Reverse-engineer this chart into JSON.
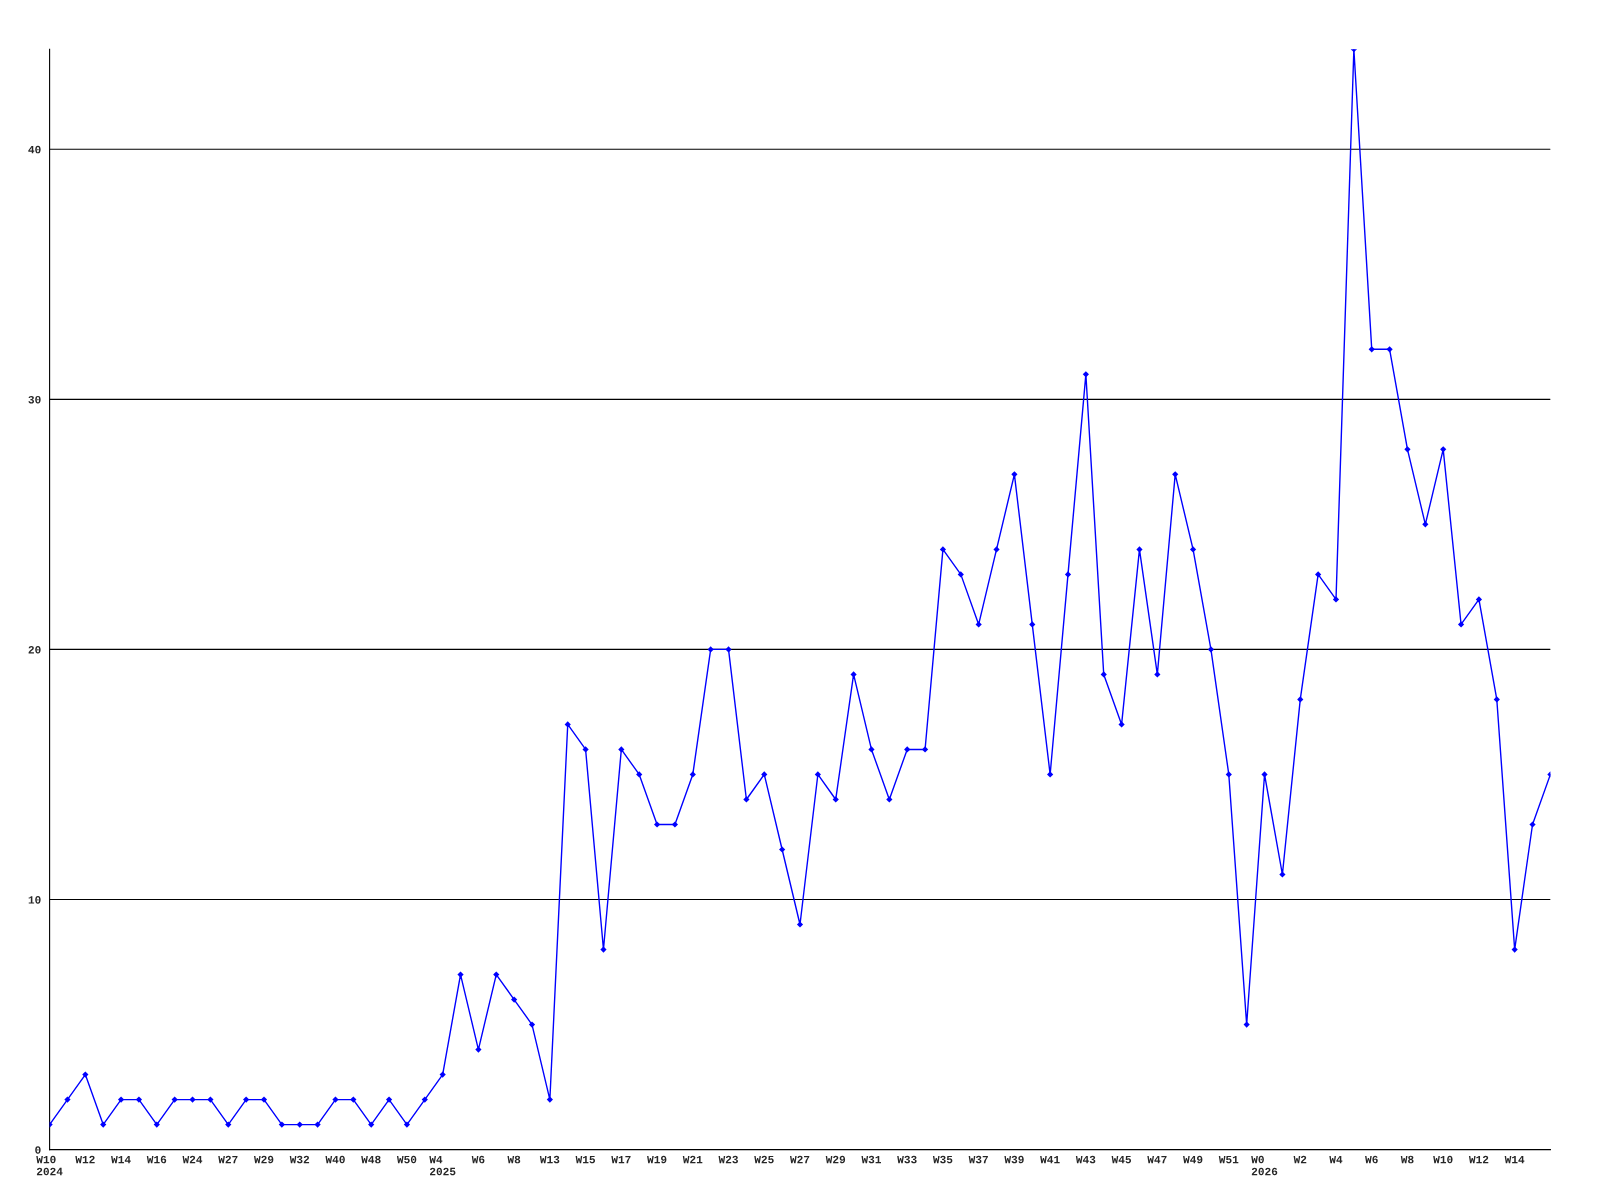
{
  "chart_data": {
    "type": "line",
    "categories": [
      "W10\n2024",
      null,
      "W12",
      null,
      "W14",
      null,
      "W16",
      null,
      "W24",
      null,
      "W27",
      null,
      "W29",
      null,
      "W32",
      null,
      "W40",
      null,
      "W48",
      null,
      "W50",
      null,
      "W4\n2025",
      null,
      "W6",
      null,
      "W8",
      null,
      "W13",
      null,
      "W15",
      null,
      "W17",
      null,
      "W19",
      null,
      "W21",
      null,
      "W23",
      null,
      "W25",
      null,
      "W27",
      null,
      "W29",
      null,
      "W31",
      null,
      "W33",
      null,
      "W35",
      null,
      "W37",
      null,
      "W39",
      null,
      "W41",
      null,
      "W43",
      null,
      "W45",
      null,
      "W47",
      null,
      "W49",
      null,
      "W51",
      null,
      "W0\n2026",
      null,
      "W2",
      null,
      "W4",
      null,
      "W6",
      null,
      "W8",
      null,
      "W10",
      null,
      "W12",
      null,
      "W14",
      null,
      null
    ],
    "series": [
      {
        "color": "#0000ff",
        "values": [
          1,
          2,
          3,
          1,
          2,
          2,
          1,
          2,
          2,
          2,
          1,
          2,
          2,
          1,
          1,
          1,
          2,
          2,
          1,
          2,
          1,
          2,
          3,
          7,
          4,
          7,
          6,
          5,
          2,
          17,
          16,
          8,
          16,
          15,
          13,
          13,
          15,
          20,
          20,
          14,
          15,
          12,
          9,
          15,
          14,
          19,
          16,
          14,
          16,
          16,
          24,
          23,
          21,
          24,
          27,
          21,
          15,
          23,
          31,
          19,
          17,
          24,
          19,
          27,
          24,
          20,
          15,
          5,
          15,
          11,
          18,
          23,
          22,
          44,
          32,
          32,
          28,
          25,
          28,
          21,
          22,
          18,
          8,
          13,
          15
        ]
      }
    ],
    "ylim": [
      0,
      44
    ],
    "yticks": [
      0,
      10,
      20,
      30,
      40
    ],
    "grid": "y",
    "marker": "diamond",
    "line_style": "solid",
    "legend": false
  }
}
